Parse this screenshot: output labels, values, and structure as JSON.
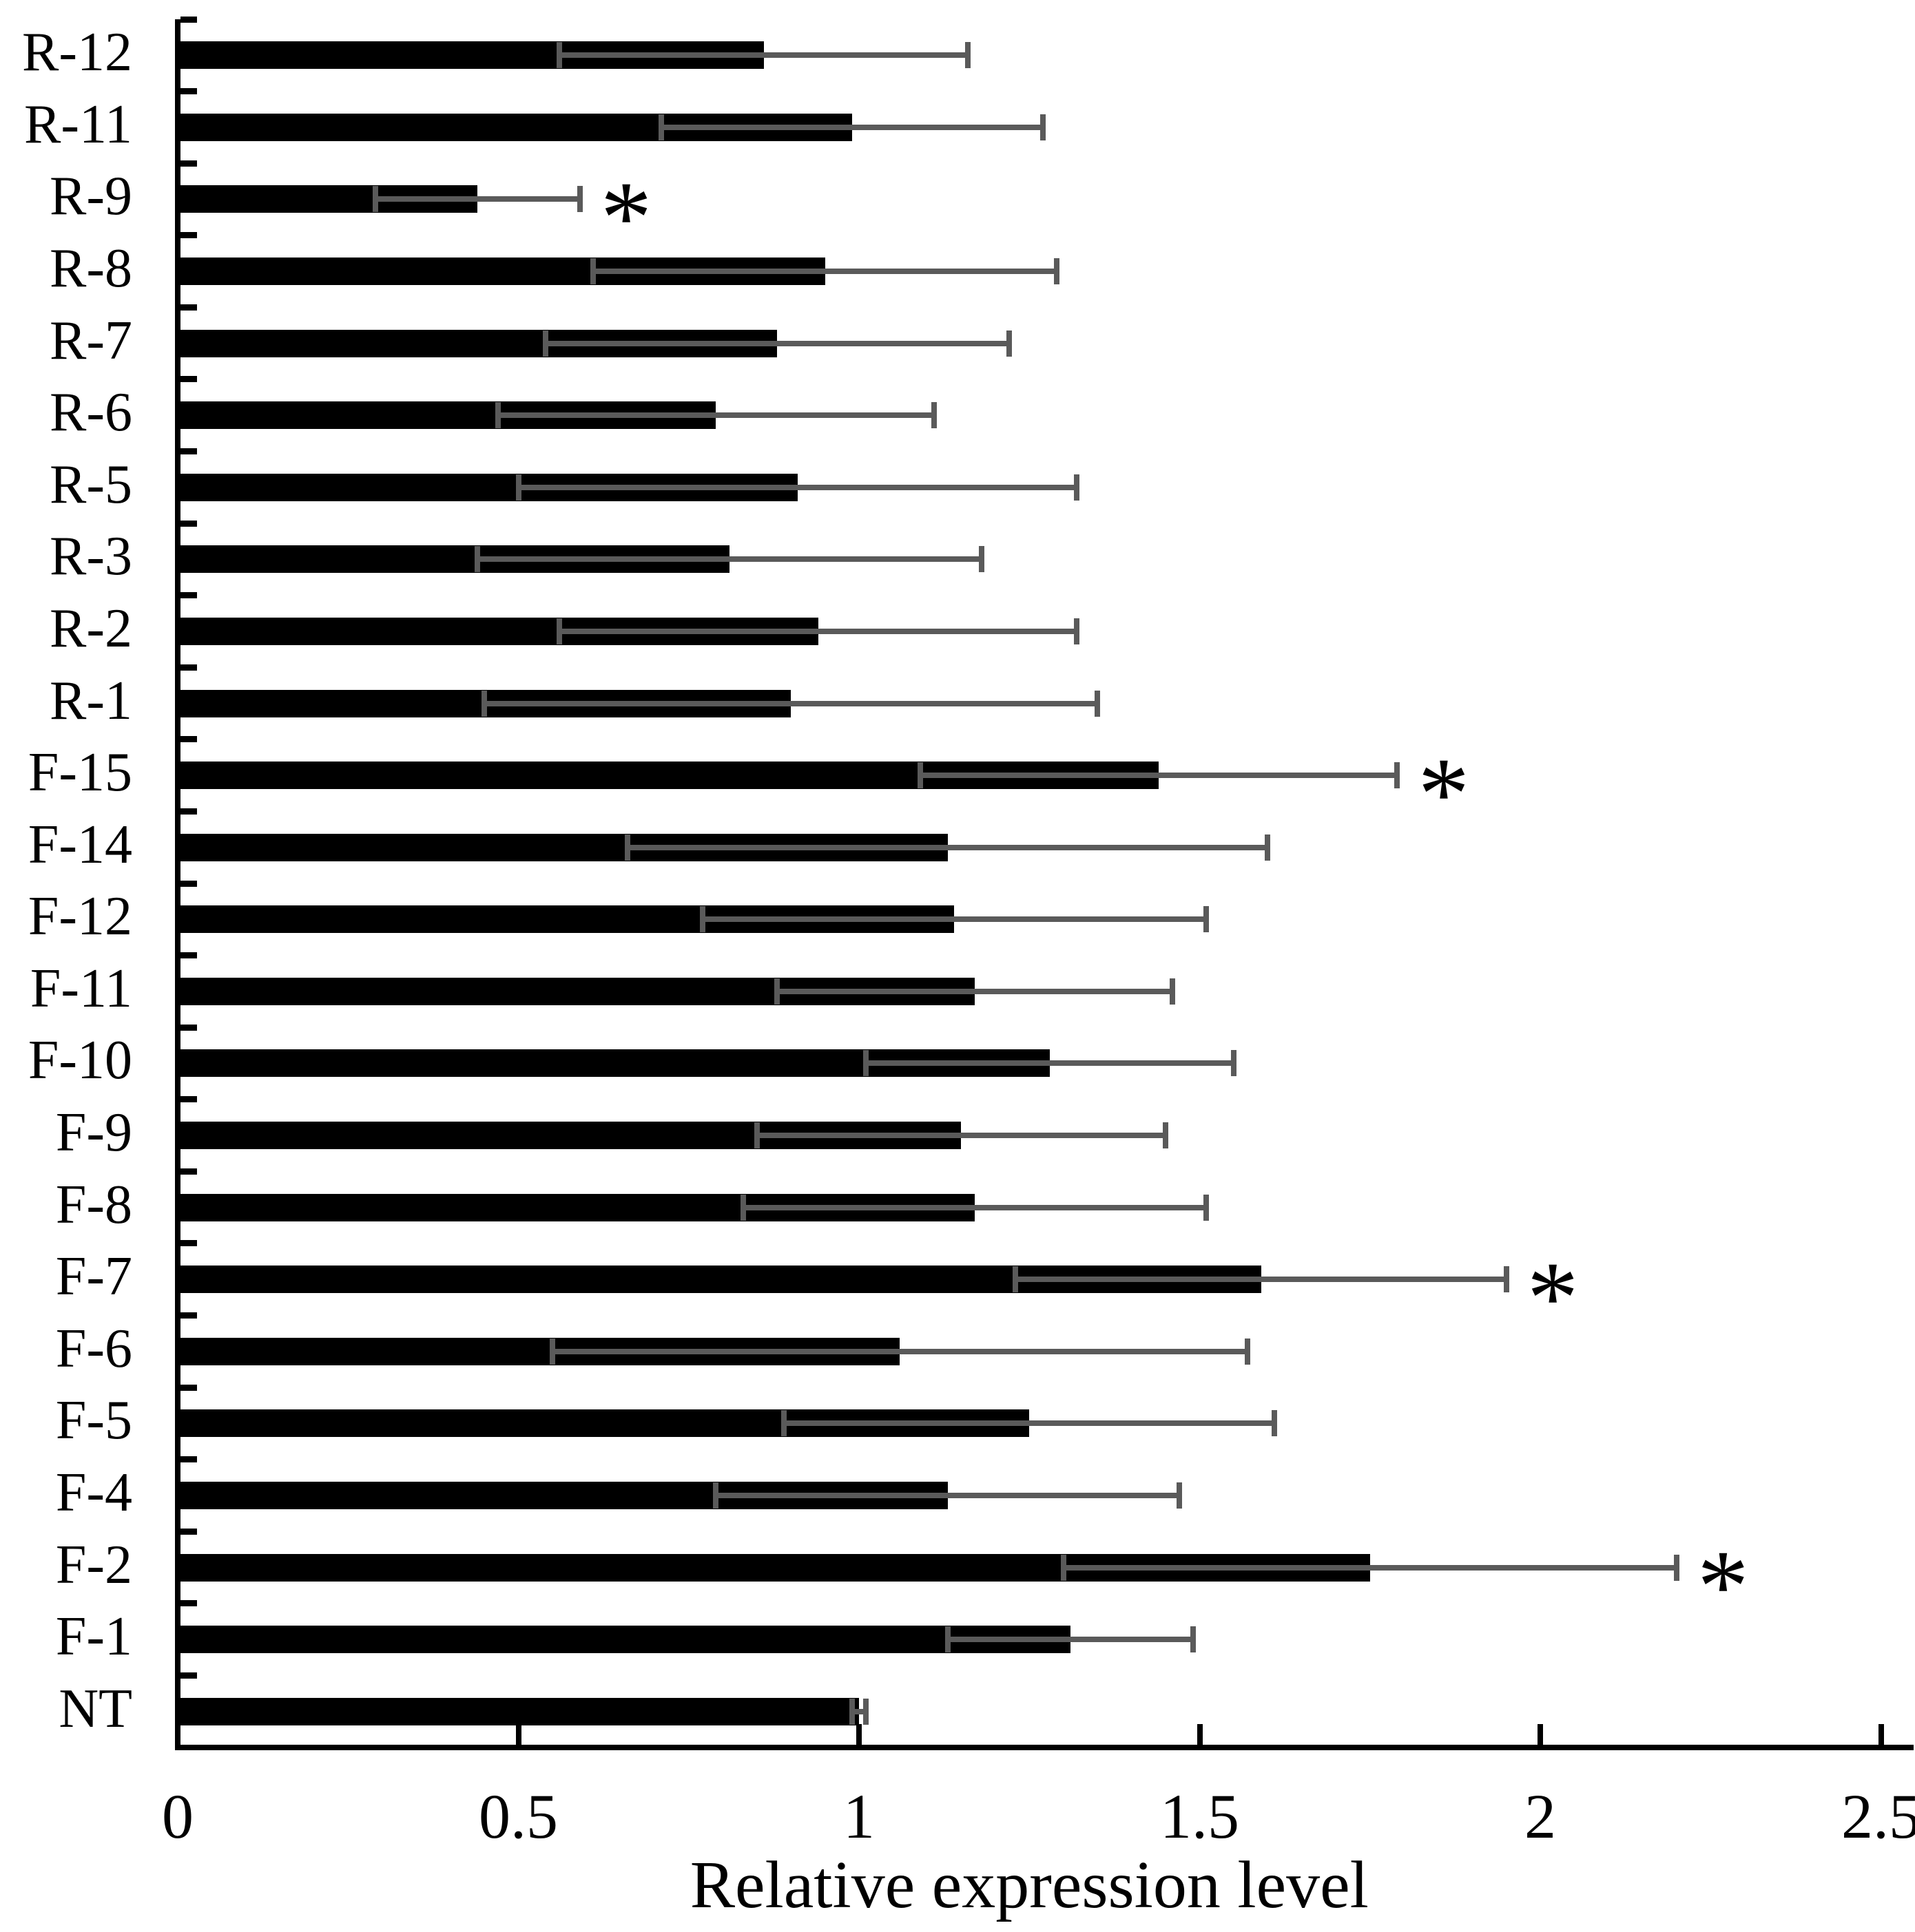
{
  "chart_data": {
    "type": "bar",
    "orientation": "horizontal",
    "title": "",
    "xlabel": "Relative expression level",
    "ylabel": "",
    "xlim": [
      0,
      2.5
    ],
    "xticks": [
      0,
      0.5,
      1,
      1.5,
      2,
      2.5
    ],
    "xtick_labels": [
      "0",
      "0.5",
      "1",
      "1.5",
      "2",
      "2.5"
    ],
    "grid": "off",
    "legend": "none",
    "significance_marker": "*",
    "bar_color": "#000000",
    "error_bar_color": "#5a5a5a",
    "axis_color": "#000000",
    "background_color": "#ffffff",
    "categories_top_to_bottom": [
      "R-12",
      "R-11",
      "R-9",
      "R-8",
      "R-7",
      "R-6",
      "R-5",
      "R-3",
      "R-2",
      "R-1",
      "F-15",
      "F-14",
      "F-12",
      "F-11",
      "F-10",
      "F-9",
      "F-8",
      "F-7",
      "F-6",
      "F-5",
      "F-4",
      "F-2",
      "F-1",
      "NT"
    ],
    "series": [
      {
        "name": "Relative expression level",
        "values": [
          0.86,
          0.99,
          0.44,
          0.95,
          0.88,
          0.79,
          0.91,
          0.81,
          0.94,
          0.9,
          1.44,
          1.13,
          1.14,
          1.17,
          1.28,
          1.15,
          1.17,
          1.59,
          1.06,
          1.25,
          1.13,
          1.75,
          1.31,
          1.0
        ],
        "errors": [
          0.3,
          0.28,
          0.15,
          0.34,
          0.34,
          0.32,
          0.41,
          0.37,
          0.38,
          0.45,
          0.35,
          0.47,
          0.37,
          0.29,
          0.27,
          0.3,
          0.34,
          0.36,
          0.51,
          0.36,
          0.34,
          0.45,
          0.18,
          0.01
        ],
        "significant": [
          false,
          false,
          true,
          false,
          false,
          false,
          false,
          false,
          false,
          false,
          true,
          false,
          false,
          false,
          false,
          false,
          false,
          true,
          false,
          false,
          false,
          true,
          false,
          false
        ]
      }
    ]
  }
}
